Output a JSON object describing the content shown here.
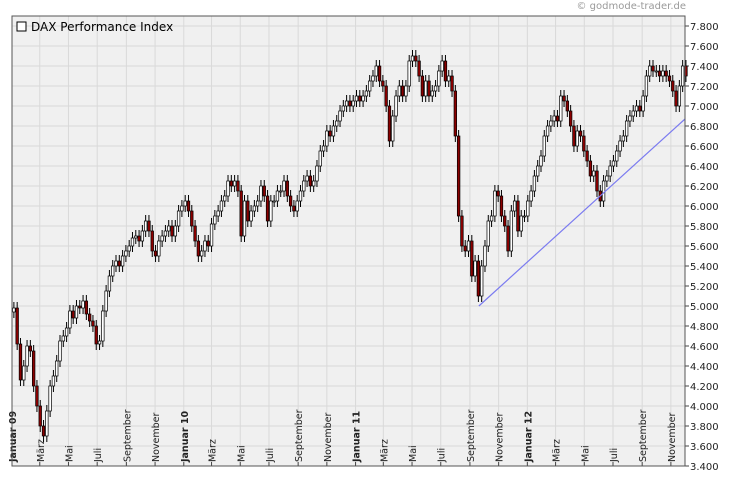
{
  "copyright": "© godmode-trader.de",
  "chart_data": {
    "type": "candlestick",
    "title": "",
    "legend": {
      "label": "DAX Performance Index",
      "position": "top-left"
    },
    "xlabel": "",
    "ylabel": "",
    "ylim": [
      3400,
      7900
    ],
    "y_scale": "linear",
    "grid": true,
    "y_ticks": [
      3400,
      3600,
      3800,
      4000,
      4200,
      4400,
      4600,
      4800,
      5000,
      5200,
      5400,
      5600,
      5800,
      6000,
      6200,
      6400,
      6600,
      6800,
      7000,
      7200,
      7400,
      7600,
      7800
    ],
    "y_tick_labels": [
      "3.400",
      "3.600",
      "3.800",
      "4.000",
      "4.200",
      "4.400",
      "4.600",
      "4.800",
      "5.000",
      "5.200",
      "5.400",
      "5.600",
      "5.800",
      "6.000",
      "6.200",
      "6.400",
      "6.600",
      "6.800",
      "7.000",
      "7.200",
      "7.400",
      "7.600",
      "7.800"
    ],
    "x_range": [
      "2009-01-01",
      "2012-12-01"
    ],
    "x_ticks": [
      {
        "date": "2009-01",
        "label": "Januar 09",
        "bold": true
      },
      {
        "date": "2009-03",
        "label": "März",
        "bold": false
      },
      {
        "date": "2009-05",
        "label": "Mai",
        "bold": false
      },
      {
        "date": "2009-07",
        "label": "Juli",
        "bold": false
      },
      {
        "date": "2009-09",
        "label": "September",
        "bold": false
      },
      {
        "date": "2009-11",
        "label": "November",
        "bold": false
      },
      {
        "date": "2010-01",
        "label": "Januar 10",
        "bold": true
      },
      {
        "date": "2010-03",
        "label": "März",
        "bold": false
      },
      {
        "date": "2010-05",
        "label": "Mai",
        "bold": false
      },
      {
        "date": "2010-07",
        "label": "Juli",
        "bold": false
      },
      {
        "date": "2010-09",
        "label": "September",
        "bold": false
      },
      {
        "date": "2010-11",
        "label": "November",
        "bold": false
      },
      {
        "date": "2011-01",
        "label": "Januar 11",
        "bold": true
      },
      {
        "date": "2011-03",
        "label": "März",
        "bold": false
      },
      {
        "date": "2011-05",
        "label": "Mai",
        "bold": false
      },
      {
        "date": "2011-07",
        "label": "Juli",
        "bold": false
      },
      {
        "date": "2011-09",
        "label": "September",
        "bold": false
      },
      {
        "date": "2011-11",
        "label": "November",
        "bold": false
      },
      {
        "date": "2012-01",
        "label": "Januar 12",
        "bold": true
      },
      {
        "date": "2012-03",
        "label": "März",
        "bold": false
      },
      {
        "date": "2012-05",
        "label": "Mai",
        "bold": false
      },
      {
        "date": "2012-07",
        "label": "Juli",
        "bold": false
      },
      {
        "date": "2012-09",
        "label": "September",
        "bold": false
      },
      {
        "date": "2012-11",
        "label": "November",
        "bold": false
      }
    ],
    "series": [
      {
        "kind": "candles",
        "up_color": "#ffffff",
        "down_color": "#8b0000",
        "closes": [
          [
            "2009-01-05",
            4980
          ],
          [
            "2009-01-12",
            4620
          ],
          [
            "2009-01-19",
            4260
          ],
          [
            "2009-01-26",
            4400
          ],
          [
            "2009-02-02",
            4600
          ],
          [
            "2009-02-09",
            4550
          ],
          [
            "2009-02-16",
            4200
          ],
          [
            "2009-02-23",
            4000
          ],
          [
            "2009-03-02",
            3800
          ],
          [
            "2009-03-09",
            3700
          ],
          [
            "2009-03-16",
            3950
          ],
          [
            "2009-03-23",
            4200
          ],
          [
            "2009-03-30",
            4300
          ],
          [
            "2009-04-06",
            4450
          ],
          [
            "2009-04-13",
            4650
          ],
          [
            "2009-04-20",
            4700
          ],
          [
            "2009-04-27",
            4780
          ],
          [
            "2009-05-04",
            4950
          ],
          [
            "2009-05-11",
            4880
          ],
          [
            "2009-05-18",
            5000
          ],
          [
            "2009-05-25",
            4980
          ],
          [
            "2009-06-01",
            5050
          ],
          [
            "2009-06-08",
            4920
          ],
          [
            "2009-06-15",
            4850
          ],
          [
            "2009-06-22",
            4800
          ],
          [
            "2009-06-29",
            4620
          ],
          [
            "2009-07-06",
            4650
          ],
          [
            "2009-07-13",
            4950
          ],
          [
            "2009-07-20",
            5150
          ],
          [
            "2009-07-27",
            5300
          ],
          [
            "2009-08-03",
            5400
          ],
          [
            "2009-08-10",
            5450
          ],
          [
            "2009-08-17",
            5400
          ],
          [
            "2009-08-24",
            5500
          ],
          [
            "2009-08-31",
            5550
          ],
          [
            "2009-09-07",
            5600
          ],
          [
            "2009-09-14",
            5680
          ],
          [
            "2009-09-21",
            5700
          ],
          [
            "2009-09-28",
            5650
          ],
          [
            "2009-10-05",
            5750
          ],
          [
            "2009-10-12",
            5850
          ],
          [
            "2009-10-19",
            5750
          ],
          [
            "2009-10-26",
            5550
          ],
          [
            "2009-11-02",
            5500
          ],
          [
            "2009-11-09",
            5650
          ],
          [
            "2009-11-16",
            5700
          ],
          [
            "2009-11-23",
            5750
          ],
          [
            "2009-11-30",
            5800
          ],
          [
            "2009-12-07",
            5700
          ],
          [
            "2009-12-14",
            5800
          ],
          [
            "2009-12-21",
            5950
          ],
          [
            "2009-12-28",
            6000
          ],
          [
            "2010-01-04",
            6050
          ],
          [
            "2010-01-11",
            5950
          ],
          [
            "2010-01-18",
            5800
          ],
          [
            "2010-01-25",
            5650
          ],
          [
            "2010-02-01",
            5500
          ],
          [
            "2010-02-08",
            5550
          ],
          [
            "2010-02-15",
            5650
          ],
          [
            "2010-02-22",
            5600
          ],
          [
            "2010-03-01",
            5820
          ],
          [
            "2010-03-08",
            5900
          ],
          [
            "2010-03-15",
            5950
          ],
          [
            "2010-03-22",
            6050
          ],
          [
            "2010-03-29",
            6100
          ],
          [
            "2010-04-05",
            6250
          ],
          [
            "2010-04-12",
            6200
          ],
          [
            "2010-04-19",
            6250
          ],
          [
            "2010-04-26",
            6150
          ],
          [
            "2010-05-03",
            5700
          ],
          [
            "2010-05-10",
            6050
          ],
          [
            "2010-05-17",
            5850
          ],
          [
            "2010-05-24",
            5950
          ],
          [
            "2010-05-31",
            6000
          ],
          [
            "2010-06-07",
            6050
          ],
          [
            "2010-06-14",
            6200
          ],
          [
            "2010-06-21",
            6100
          ],
          [
            "2010-06-28",
            5850
          ],
          [
            "2010-07-05",
            6050
          ],
          [
            "2010-07-12",
            6050
          ],
          [
            "2010-07-19",
            6150
          ],
          [
            "2010-07-26",
            6150
          ],
          [
            "2010-08-02",
            6250
          ],
          [
            "2010-08-09",
            6100
          ],
          [
            "2010-08-16",
            6000
          ],
          [
            "2010-08-23",
            5950
          ],
          [
            "2010-08-30",
            6050
          ],
          [
            "2010-09-06",
            6150
          ],
          [
            "2010-09-13",
            6250
          ],
          [
            "2010-09-20",
            6300
          ],
          [
            "2010-09-27",
            6200
          ],
          [
            "2010-10-04",
            6250
          ],
          [
            "2010-10-11",
            6400
          ],
          [
            "2010-10-18",
            6550
          ],
          [
            "2010-10-25",
            6600
          ],
          [
            "2010-11-01",
            6750
          ],
          [
            "2010-11-08",
            6700
          ],
          [
            "2010-11-15",
            6800
          ],
          [
            "2010-11-22",
            6850
          ],
          [
            "2010-11-29",
            6950
          ],
          [
            "2010-12-06",
            7000
          ],
          [
            "2010-12-13",
            7050
          ],
          [
            "2010-12-20",
            7000
          ],
          [
            "2010-12-27",
            7050
          ],
          [
            "2011-01-03",
            7100
          ],
          [
            "2011-01-10",
            7050
          ],
          [
            "2011-01-17",
            7100
          ],
          [
            "2011-01-24",
            7150
          ],
          [
            "2011-01-31",
            7250
          ],
          [
            "2011-02-07",
            7300
          ],
          [
            "2011-02-14",
            7400
          ],
          [
            "2011-02-21",
            7250
          ],
          [
            "2011-02-28",
            7200
          ],
          [
            "2011-03-07",
            7000
          ],
          [
            "2011-03-14",
            6650
          ],
          [
            "2011-03-21",
            6900
          ],
          [
            "2011-03-28",
            7100
          ],
          [
            "2011-04-04",
            7200
          ],
          [
            "2011-04-11",
            7100
          ],
          [
            "2011-04-18",
            7200
          ],
          [
            "2011-04-25",
            7450
          ],
          [
            "2011-05-02",
            7500
          ],
          [
            "2011-05-09",
            7450
          ],
          [
            "2011-05-16",
            7300
          ],
          [
            "2011-05-23",
            7100
          ],
          [
            "2011-05-30",
            7250
          ],
          [
            "2011-06-06",
            7100
          ],
          [
            "2011-06-13",
            7150
          ],
          [
            "2011-06-20",
            7200
          ],
          [
            "2011-06-27",
            7350
          ],
          [
            "2011-07-04",
            7450
          ],
          [
            "2011-07-11",
            7250
          ],
          [
            "2011-07-18",
            7300
          ],
          [
            "2011-07-25",
            7150
          ],
          [
            "2011-08-01",
            6700
          ],
          [
            "2011-08-08",
            5900
          ],
          [
            "2011-08-15",
            5600
          ],
          [
            "2011-08-22",
            5550
          ],
          [
            "2011-08-29",
            5650
          ],
          [
            "2011-09-05",
            5300
          ],
          [
            "2011-09-12",
            5450
          ],
          [
            "2011-09-19",
            5100
          ],
          [
            "2011-09-26",
            5400
          ],
          [
            "2011-10-03",
            5600
          ],
          [
            "2011-10-10",
            5850
          ],
          [
            "2011-10-17",
            5900
          ],
          [
            "2011-10-24",
            6150
          ],
          [
            "2011-10-31",
            6100
          ],
          [
            "2011-11-07",
            5900
          ],
          [
            "2011-11-14",
            5800
          ],
          [
            "2011-11-21",
            5550
          ],
          [
            "2011-11-28",
            5950
          ],
          [
            "2011-12-05",
            6050
          ],
          [
            "2011-12-12",
            5750
          ],
          [
            "2011-12-19",
            5900
          ],
          [
            "2011-12-26",
            5900
          ],
          [
            "2012-01-02",
            6050
          ],
          [
            "2012-01-09",
            6150
          ],
          [
            "2012-01-16",
            6300
          ],
          [
            "2012-01-23",
            6400
          ],
          [
            "2012-01-30",
            6500
          ],
          [
            "2012-02-06",
            6700
          ],
          [
            "2012-02-13",
            6800
          ],
          [
            "2012-02-20",
            6850
          ],
          [
            "2012-02-27",
            6900
          ],
          [
            "2012-03-05",
            6850
          ],
          [
            "2012-03-12",
            7100
          ],
          [
            "2012-03-19",
            7050
          ],
          [
            "2012-03-26",
            6950
          ],
          [
            "2012-04-02",
            6800
          ],
          [
            "2012-04-09",
            6600
          ],
          [
            "2012-04-16",
            6750
          ],
          [
            "2012-04-23",
            6700
          ],
          [
            "2012-04-30",
            6550
          ],
          [
            "2012-05-07",
            6450
          ],
          [
            "2012-05-14",
            6300
          ],
          [
            "2012-05-21",
            6350
          ],
          [
            "2012-05-28",
            6150
          ],
          [
            "2012-06-04",
            6050
          ],
          [
            "2012-06-11",
            6250
          ],
          [
            "2012-06-18",
            6300
          ],
          [
            "2012-06-25",
            6400
          ],
          [
            "2012-07-02",
            6450
          ],
          [
            "2012-07-09",
            6550
          ],
          [
            "2012-07-16",
            6650
          ],
          [
            "2012-07-23",
            6700
          ],
          [
            "2012-07-30",
            6850
          ],
          [
            "2012-08-06",
            6900
          ],
          [
            "2012-08-13",
            6950
          ],
          [
            "2012-08-20",
            7000
          ],
          [
            "2012-08-27",
            6950
          ],
          [
            "2012-09-03",
            7100
          ],
          [
            "2012-09-10",
            7300
          ],
          [
            "2012-09-17",
            7400
          ],
          [
            "2012-09-24",
            7350
          ],
          [
            "2012-10-01",
            7350
          ],
          [
            "2012-10-08",
            7300
          ],
          [
            "2012-10-15",
            7350
          ],
          [
            "2012-10-22",
            7300
          ],
          [
            "2012-10-29",
            7250
          ],
          [
            "2012-11-05",
            7150
          ],
          [
            "2012-11-12",
            7000
          ],
          [
            "2012-11-19",
            7200
          ],
          [
            "2012-11-26",
            7400
          ],
          [
            "2012-12-03",
            7300
          ]
        ]
      },
      {
        "kind": "trendline",
        "color": "#7b7bf0",
        "points": [
          [
            "2011-09-20",
            5000
          ],
          [
            "2012-12-01",
            6870
          ]
        ]
      }
    ]
  }
}
